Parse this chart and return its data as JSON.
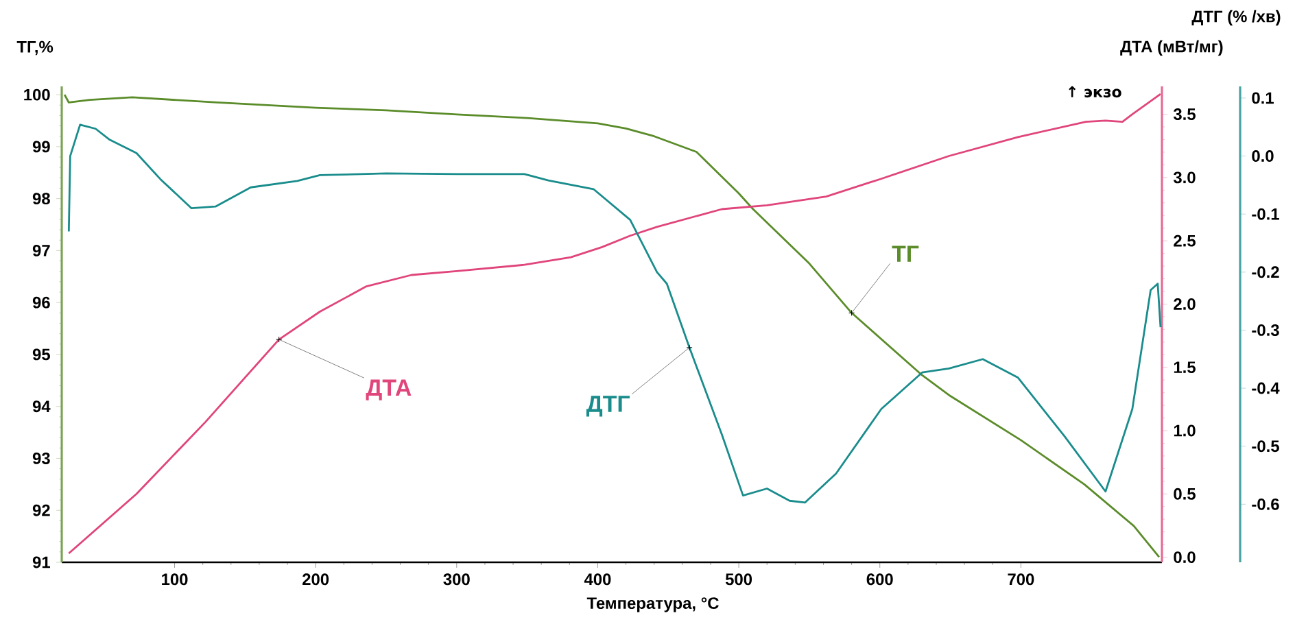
{
  "chart_data": {
    "type": "line",
    "xlabel": "Температура, °C",
    "ylabel": "ТГ,%",
    "y2label": "ДТА (мВт/мг)",
    "y3label": "ДТГ (% /хв)",
    "annotations": [
      "↑ экзо"
    ],
    "xlim": [
      20,
      800
    ],
    "xticks": [
      100,
      200,
      300,
      400,
      500,
      600,
      700
    ],
    "ylim": [
      91,
      100.16
    ],
    "yticks": [
      91,
      92,
      93,
      94,
      95,
      96,
      97,
      98,
      99,
      100
    ],
    "y2lim": [
      -0.04,
      3.72
    ],
    "y2ticks": [
      {
        "value": 0,
        "label": "0.0"
      },
      {
        "value": 0.5,
        "label": "0.5"
      },
      {
        "value": 1,
        "label": "1.0"
      },
      {
        "value": 1.5,
        "label": "1.5"
      },
      {
        "value": 2,
        "label": "2.0"
      },
      {
        "value": 2.5,
        "label": "2.5"
      },
      {
        "value": 3,
        "label": "3.0"
      },
      {
        "value": 3.5,
        "label": "3.5"
      }
    ],
    "y3lim": [
      -0.7,
      0.12
    ],
    "y3ticks": [
      {
        "value": 0.1,
        "label": "0.1"
      },
      {
        "value": 0,
        "label": "0.0"
      },
      {
        "value": -0.1,
        "label": "-0.1"
      },
      {
        "value": -0.2,
        "label": "-0.2"
      },
      {
        "value": -0.3,
        "label": "-0.3"
      },
      {
        "value": -0.4,
        "label": "-0.4"
      },
      {
        "value": -0.5,
        "label": "-0.5"
      },
      {
        "value": -0.6,
        "label": "-0.6"
      }
    ],
    "series": [
      {
        "name": "ТГ",
        "color": "#5b8c2a",
        "x": [
          22,
          25,
          40,
          70,
          100,
          130,
          200,
          250,
          300,
          350,
          400,
          420,
          440,
          470,
          500,
          510,
          550,
          580,
          630,
          650,
          700,
          745,
          780,
          798
        ],
        "values": [
          100.0,
          99.85,
          99.9,
          99.95,
          99.9,
          99.85,
          99.75,
          99.7,
          99.62,
          99.55,
          99.45,
          99.35,
          99.2,
          98.9,
          98.1,
          97.8,
          96.75,
          95.8,
          94.6,
          94.2,
          93.35,
          92.5,
          91.7,
          91.1
        ]
      },
      {
        "name": "ДТА",
        "color": "#e0457b",
        "axis": "y2",
        "x": [
          25,
          73,
          122,
          174,
          203,
          236,
          268,
          300,
          348,
          381,
          403,
          423,
          442,
          488,
          520,
          562,
          601,
          649,
          698,
          746,
          760,
          772,
          779,
          799
        ],
        "values": [
          0.03,
          0.5,
          1.07,
          1.72,
          1.94,
          2.14,
          2.23,
          2.26,
          2.31,
          2.37,
          2.45,
          2.54,
          2.61,
          2.75,
          2.78,
          2.85,
          2.99,
          3.17,
          3.32,
          3.44,
          3.45,
          3.44,
          3.5,
          3.66
        ]
      },
      {
        "name": "ДТГ",
        "color": "#1a8c8c",
        "axis": "y3",
        "x": [
          25,
          26,
          33,
          44,
          54,
          73,
          90,
          112,
          129,
          154,
          187,
          203,
          250,
          300,
          348,
          365,
          397,
          423,
          442,
          449,
          465,
          488,
          503,
          520,
          536,
          547,
          569,
          601,
          630,
          649,
          673,
          698,
          731,
          760,
          779,
          792,
          797,
          799
        ],
        "values": [
          -0.13,
          0.0,
          0.054,
          0.047,
          0.028,
          0.005,
          -0.04,
          -0.09,
          -0.087,
          -0.054,
          -0.043,
          -0.033,
          -0.03,
          -0.031,
          -0.031,
          -0.042,
          -0.057,
          -0.11,
          -0.2,
          -0.22,
          -0.33,
          -0.48,
          -0.585,
          -0.573,
          -0.594,
          -0.597,
          -0.547,
          -0.436,
          -0.373,
          -0.366,
          -0.35,
          -0.382,
          -0.483,
          -0.578,
          -0.436,
          -0.231,
          -0.22,
          -0.295
        ]
      }
    ]
  }
}
